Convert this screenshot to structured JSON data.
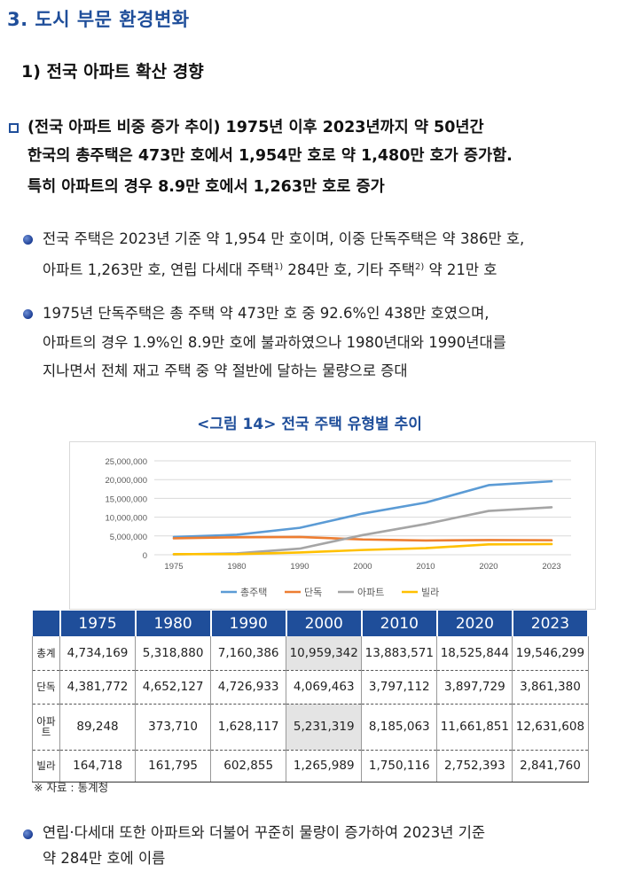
{
  "section_title": "3. 도시 부문 환경변화",
  "subsection_title": "1) 전국 아파트 확산 경향",
  "summary": {
    "line1": "(전국 아파트 비중 증가 추이) 1975년 이후 2023년까지 약 50년간",
    "line2": "한국의 총주택은 473만 호에서 1,954만 호로 약 1,480만 호가 증가함.",
    "line3": "특히 아파트의 경우 8.9만 호에서 1,263만 호로 증가"
  },
  "bullet1": {
    "line1": "전국 주택은 2023년 기준 약 1,954 만 호이며, 이중 단독주택은 약 386만 호,",
    "line2a": "아파트 1,263만 호, 연립 다세대 주택",
    "sup1": "1)",
    "line2b": " 284만 호, 기타 주택",
    "sup2": "2)",
    "line2c": " 약 21만 호"
  },
  "bullet2": {
    "line1": "1975년 단독주택은 총 주택 약 473만 호 중 92.6%인 438만 호였으며,",
    "line2": "아파트의 경우 1.9%인 8.9만 호에 불과하였으나 1980년대와 1990년대를",
    "line3": "지나면서 전체 재고 주택 중 약 절반에 달하는 물량으로 증대"
  },
  "figure_title": "<그림 14> 전국 주택 유형별 추이",
  "chart_data": {
    "type": "line",
    "x": [
      "1975",
      "1980",
      "1990",
      "2000",
      "2010",
      "2020",
      "2023"
    ],
    "y_ticks": [
      "25,000,000",
      "20,000,000",
      "15,000,000",
      "10,000,000",
      "5,000,000",
      "0"
    ],
    "ylim": [
      0,
      25000000
    ],
    "grid": true,
    "legend_position": "bottom",
    "series": [
      {
        "name": "총주택",
        "color": "#5b9bd5",
        "values": [
          4734169,
          5318880,
          7160386,
          10959342,
          13883571,
          18525844,
          19546299
        ]
      },
      {
        "name": "단독",
        "color": "#ed7d31",
        "values": [
          4381772,
          4652127,
          4726933,
          4069463,
          3797112,
          3897729,
          3861380
        ]
      },
      {
        "name": "아파트",
        "color": "#a5a5a5",
        "values": [
          89248,
          373710,
          1628117,
          5231319,
          8185063,
          11661851,
          12631608
        ]
      },
      {
        "name": "빌라",
        "color": "#ffc000",
        "values": [
          164718,
          161795,
          602855,
          1265989,
          1750116,
          2752393,
          2841760
        ]
      }
    ]
  },
  "table": {
    "headers": [
      "",
      "1975",
      "1980",
      "1990",
      "2000",
      "2010",
      "2020",
      "2023"
    ],
    "rows": [
      {
        "label": "총계",
        "cells": [
          "4,734,169",
          "5,318,880",
          "7,160,386",
          "10,959,342",
          "13,883,571",
          "18,525,844",
          "19,546,299"
        ]
      },
      {
        "label": "단독",
        "cells": [
          "4,381,772",
          "4,652,127",
          "4,726,933",
          "4,069,463",
          "3,797,112",
          "3,897,729",
          "3,861,380"
        ]
      },
      {
        "label": "아파트",
        "cells": [
          "89,248",
          "373,710",
          "1,628,117",
          "5,231,319",
          "8,185,063",
          "11,661,851",
          "12,631,608"
        ]
      },
      {
        "label": "빌라",
        "cells": [
          "164,718",
          "161,795",
          "602,855",
          "1,265,989",
          "1,750,116",
          "2,752,393",
          "2,841,760"
        ]
      }
    ]
  },
  "source": "※ 자료 : 통계청",
  "bullet3": {
    "line1": "연립·다세대 또한 아파트와 더불어 꾸준히 물량이 증가하여 2023년 기준",
    "line2": "약 284만 호에 이름"
  }
}
